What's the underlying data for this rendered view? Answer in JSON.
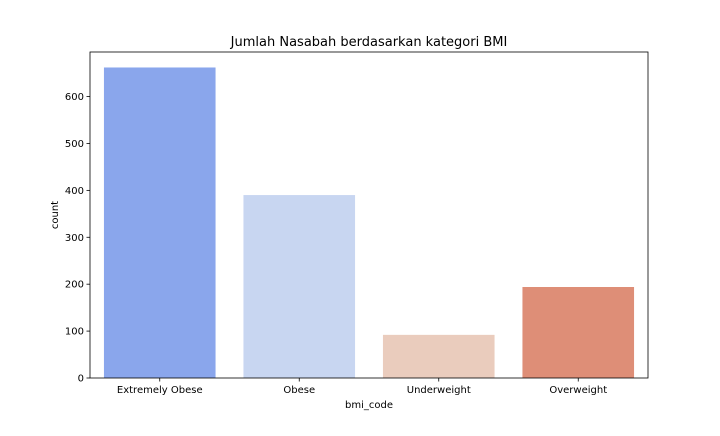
{
  "chart_data": {
    "type": "bar",
    "title": "Jumlah Nasabah berdasarkan kategori BMI",
    "xlabel": "bmi_code",
    "ylabel": "count",
    "categories": [
      "Extremely Obese",
      "Obese",
      "Underweight",
      "Overweight"
    ],
    "values": [
      662,
      390,
      92,
      194
    ],
    "colors": [
      "#8aa6ec",
      "#c8d6f1",
      "#eaccbd",
      "#de8e77"
    ],
    "ylim": [
      0,
      695
    ],
    "yticks": [
      0,
      100,
      200,
      300,
      400,
      500,
      600
    ],
    "grid": false,
    "legend": "none"
  }
}
